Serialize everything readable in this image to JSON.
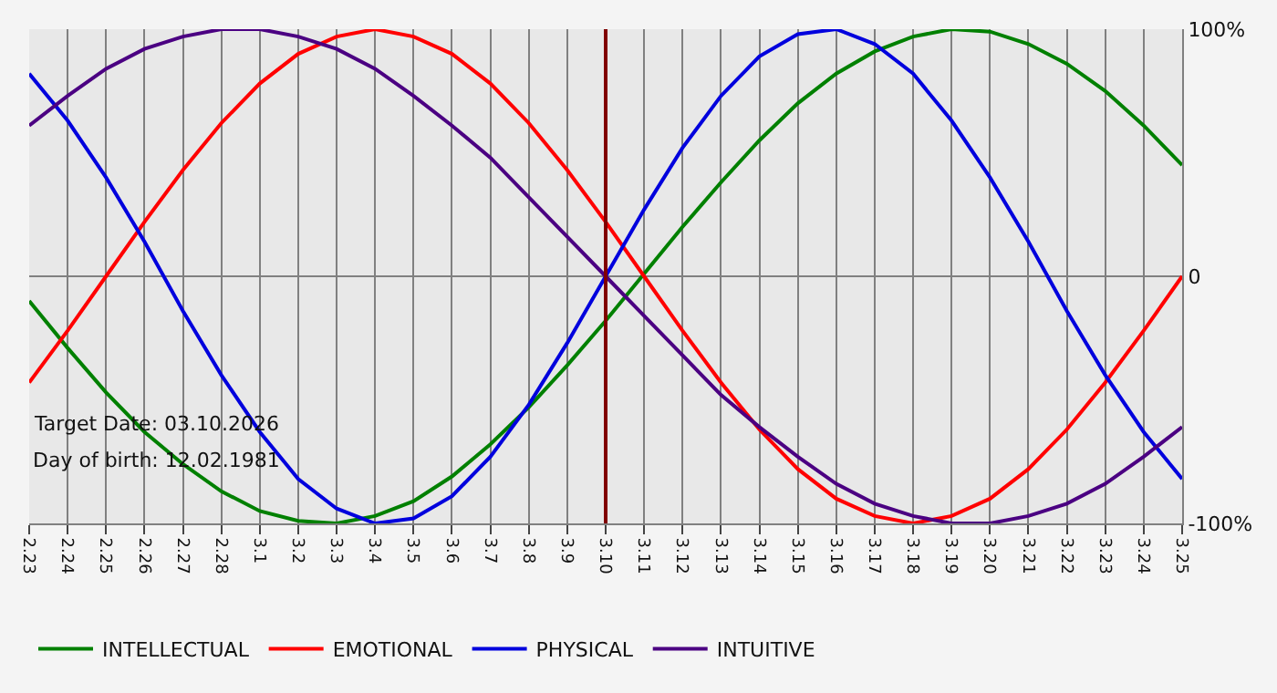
{
  "chart_data": {
    "type": "line",
    "categories": [
      "2.23",
      "2.24",
      "2.25",
      "2.26",
      "2.27",
      "2.28",
      "3.1",
      "3.2",
      "3.3",
      "3.4",
      "3.5",
      "3.6",
      "3.7",
      "3.8",
      "3.9",
      "3.10",
      "3.11",
      "3.12",
      "3.13",
      "3.14",
      "3.15",
      "3.16",
      "3.17",
      "3.18",
      "3.19",
      "3.20",
      "3.21",
      "3.22",
      "3.23",
      "3.24",
      "3.25"
    ],
    "series": [
      {
        "name": "INTELLECTUAL",
        "color": "#008000",
        "values": [
          -10,
          -29,
          -47,
          -63,
          -76,
          -87,
          -95,
          -99,
          -100,
          -97,
          -91,
          -81,
          -68,
          -53,
          -36,
          -18,
          1,
          20,
          38,
          55,
          70,
          82,
          91,
          97,
          100,
          99,
          94,
          86,
          75,
          61,
          45
        ]
      },
      {
        "name": "EMOTIONAL",
        "color": "#ff0000",
        "values": [
          -43,
          -22,
          0,
          22,
          43,
          62,
          78,
          90,
          97,
          100,
          97,
          90,
          78,
          62,
          43,
          22,
          0,
          -22,
          -43,
          -62,
          -78,
          -90,
          -97,
          -100,
          -97,
          -90,
          -78,
          -62,
          -43,
          -22,
          0
        ]
      },
      {
        "name": "PHYSICAL",
        "color": "#0000dd",
        "values": [
          82,
          63,
          40,
          14,
          -14,
          -40,
          -63,
          -82,
          -94,
          -100,
          -98,
          -89,
          -73,
          -52,
          -27,
          0,
          27,
          52,
          73,
          89,
          98,
          100,
          94,
          82,
          63,
          40,
          14,
          -14,
          -40,
          -63,
          -82
        ]
      },
      {
        "name": "INTUITIVE",
        "color": "#4b0082",
        "values": [
          61,
          73,
          84,
          92,
          97,
          100,
          100,
          97,
          92,
          84,
          73,
          61,
          48,
          32,
          16,
          0,
          -16,
          -32,
          -48,
          -61,
          -73,
          -84,
          -92,
          -97,
          -100,
          -100,
          -97,
          -92,
          -84,
          -73,
          -61
        ]
      }
    ],
    "ylim": [
      -100,
      100
    ],
    "yticks": [
      {
        "value": -100,
        "label": "-100%"
      },
      0,
      {
        "value": 100,
        "label": "100%"
      }
    ],
    "ref_lines": [
      {
        "axis": "x",
        "value": "3.10",
        "color": "#800000"
      }
    ],
    "annotations": [
      "Target Date: 03.10.2026",
      "Day of birth: 12.02.1981"
    ],
    "grid": true,
    "legend": "bottom left",
    "marker": "none",
    "line_style": "solid"
  }
}
